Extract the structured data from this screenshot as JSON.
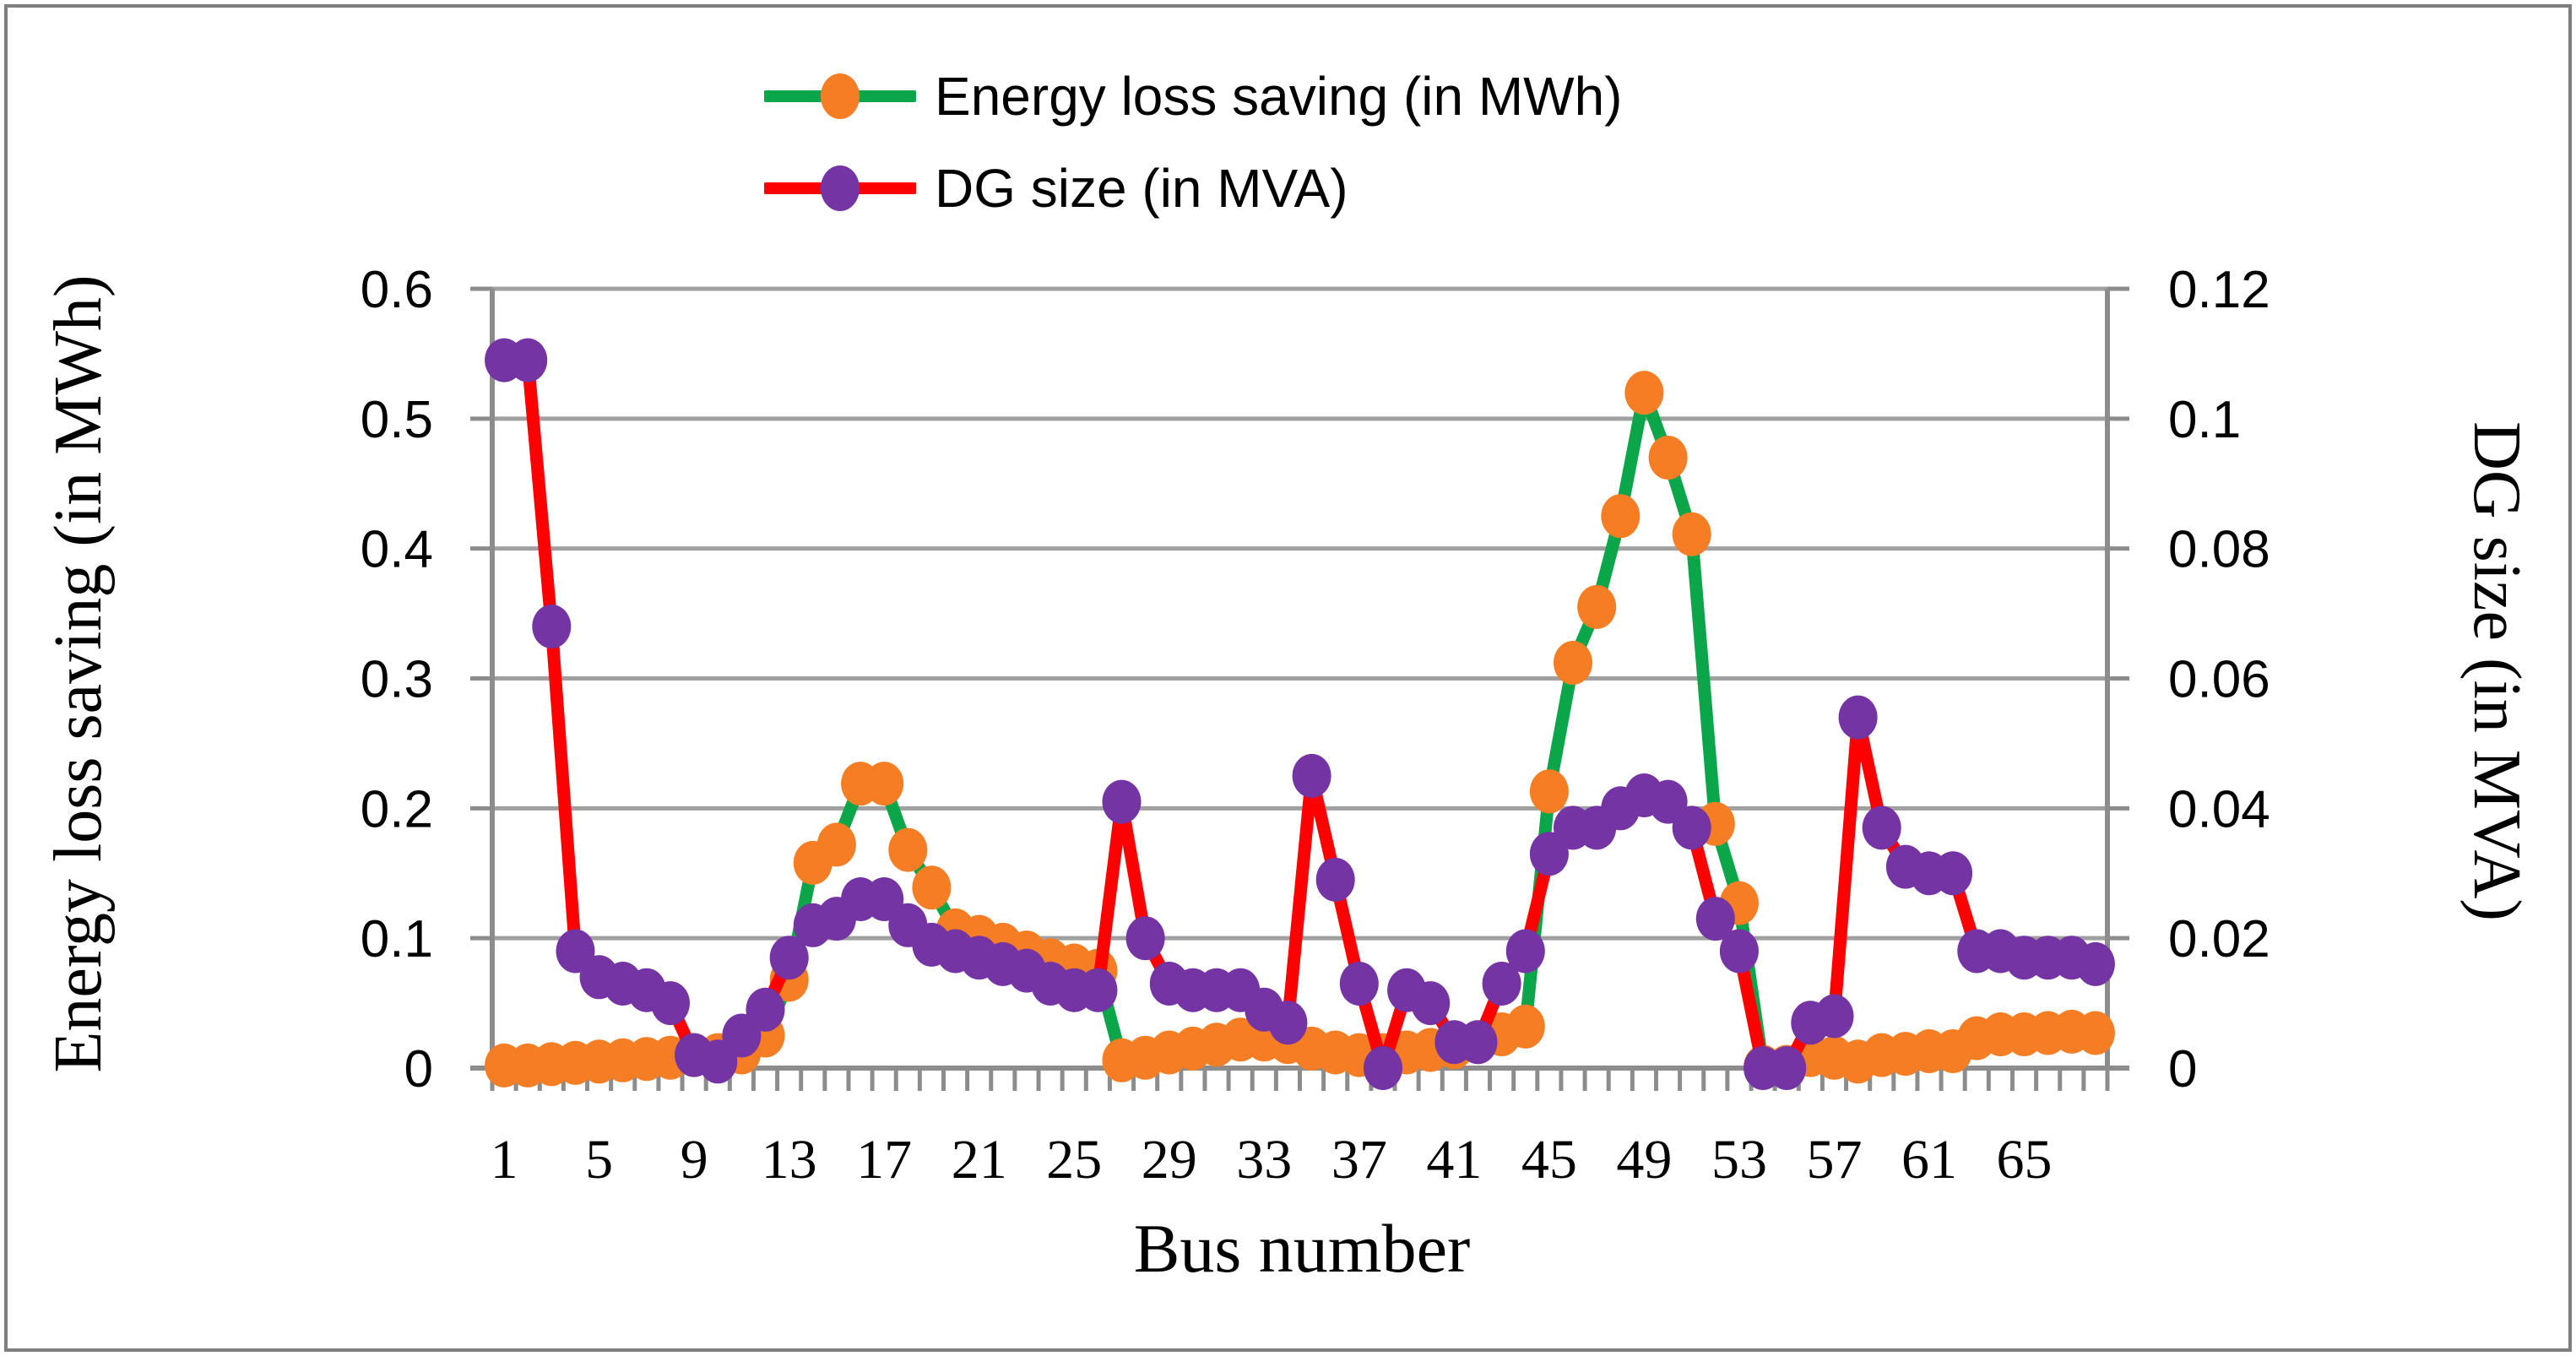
{
  "figure": {
    "background": "#ffffff",
    "border_color": "#7f7f7f",
    "gridline_color": "#a0a0a0",
    "axis_line_color": "#8c8c8c"
  },
  "legend": {
    "items": [
      {
        "label": "Energy loss saving (in MWh)",
        "line_color": "#0ca64a",
        "marker_color": "#f57e24"
      },
      {
        "label": "DG size (in MVA)",
        "line_color": "#fe0000",
        "marker_color": "#7434a4"
      }
    ]
  },
  "axes": {
    "x": {
      "title": "Bus number",
      "tick_labels": [
        "1",
        "5",
        "9",
        "13",
        "17",
        "21",
        "25",
        "29",
        "33",
        "37",
        "41",
        "45",
        "49",
        "53",
        "57",
        "61",
        "65"
      ]
    },
    "left": {
      "title": "Energy loss saving (in MWh)",
      "tick_labels": [
        "0.6",
        "0.5",
        "0.4",
        "0.3",
        "0.2",
        "0.1",
        "0"
      ]
    },
    "right": {
      "title": "DG size (in MVA)",
      "tick_labels": [
        "0.12",
        "0.1",
        "0.08",
        "0.06",
        "0.04",
        "0.02",
        "0"
      ]
    }
  },
  "chart_data": {
    "type": "line",
    "title": "",
    "xlabel": "Bus number",
    "x": [
      1,
      2,
      3,
      4,
      5,
      6,
      7,
      8,
      9,
      10,
      11,
      12,
      13,
      14,
      15,
      16,
      17,
      18,
      19,
      20,
      21,
      22,
      23,
      24,
      25,
      26,
      27,
      28,
      29,
      30,
      31,
      32,
      33,
      34,
      35,
      36,
      37,
      38,
      39,
      40,
      41,
      42,
      43,
      44,
      45,
      46,
      47,
      48,
      49,
      50,
      51,
      52,
      53,
      54,
      55,
      56,
      57,
      58,
      59,
      60,
      61,
      62,
      63,
      64,
      65,
      66,
      67,
      68
    ],
    "x_labeled_ticks": [
      1,
      5,
      9,
      13,
      17,
      21,
      25,
      29,
      33,
      37,
      41,
      45,
      49,
      53,
      57,
      61,
      65
    ],
    "grid": true,
    "legend_position": "top-center",
    "left_axis": {
      "label": "Energy loss saving (in MWh)",
      "range": [
        0,
        0.6
      ],
      "ticks": [
        0,
        0.1,
        0.2,
        0.3,
        0.4,
        0.5,
        0.6
      ]
    },
    "right_axis": {
      "label": "DG size (in MVA)",
      "range": [
        0,
        0.12
      ],
      "ticks": [
        0,
        0.02,
        0.04,
        0.06,
        0.08,
        0.1,
        0.12
      ]
    },
    "series": [
      {
        "name": "Energy loss saving (in MWh)",
        "axis": "left",
        "line_color": "#0ca64a",
        "marker_color": "#f57e24",
        "values": [
          0.002,
          0.002,
          0.003,
          0.004,
          0.005,
          0.006,
          0.007,
          0.008,
          0.01,
          0.01,
          0.012,
          0.025,
          0.068,
          0.158,
          0.172,
          0.219,
          0.219,
          0.168,
          0.139,
          0.106,
          0.101,
          0.095,
          0.089,
          0.083,
          0.079,
          0.075,
          0.006,
          0.008,
          0.012,
          0.015,
          0.018,
          0.022,
          0.022,
          0.02,
          0.015,
          0.012,
          0.01,
          0.01,
          0.012,
          0.014,
          0.016,
          0.02,
          0.026,
          0.032,
          0.213,
          0.312,
          0.355,
          0.425,
          0.52,
          0.47,
          0.411,
          0.188,
          0.127,
          0.001,
          0.001,
          0.01,
          0.008,
          0.005,
          0.01,
          0.011,
          0.013,
          0.013,
          0.023,
          0.026,
          0.026,
          0.027,
          0.028,
          0.027
        ]
      },
      {
        "name": "DG size (in MVA)",
        "axis": "right",
        "line_color": "#fe0000",
        "marker_color": "#7434a4",
        "values": [
          0.109,
          0.109,
          0.068,
          0.018,
          0.014,
          0.013,
          0.012,
          0.01,
          0.002,
          0.001,
          0.005,
          0.009,
          0.017,
          0.022,
          0.023,
          0.026,
          0.026,
          0.022,
          0.019,
          0.018,
          0.017,
          0.016,
          0.015,
          0.013,
          0.012,
          0.012,
          0.041,
          0.02,
          0.013,
          0.012,
          0.012,
          0.012,
          0.009,
          0.007,
          0.045,
          0.029,
          0.013,
          0.0,
          0.012,
          0.01,
          0.004,
          0.004,
          0.013,
          0.018,
          0.033,
          0.037,
          0.037,
          0.04,
          0.042,
          0.041,
          0.037,
          0.023,
          0.018,
          0.0,
          0.0,
          0.007,
          0.008,
          0.054,
          0.037,
          0.031,
          0.03,
          0.03,
          0.018,
          0.018,
          0.017,
          0.017,
          0.017,
          0.016
        ]
      }
    ]
  }
}
